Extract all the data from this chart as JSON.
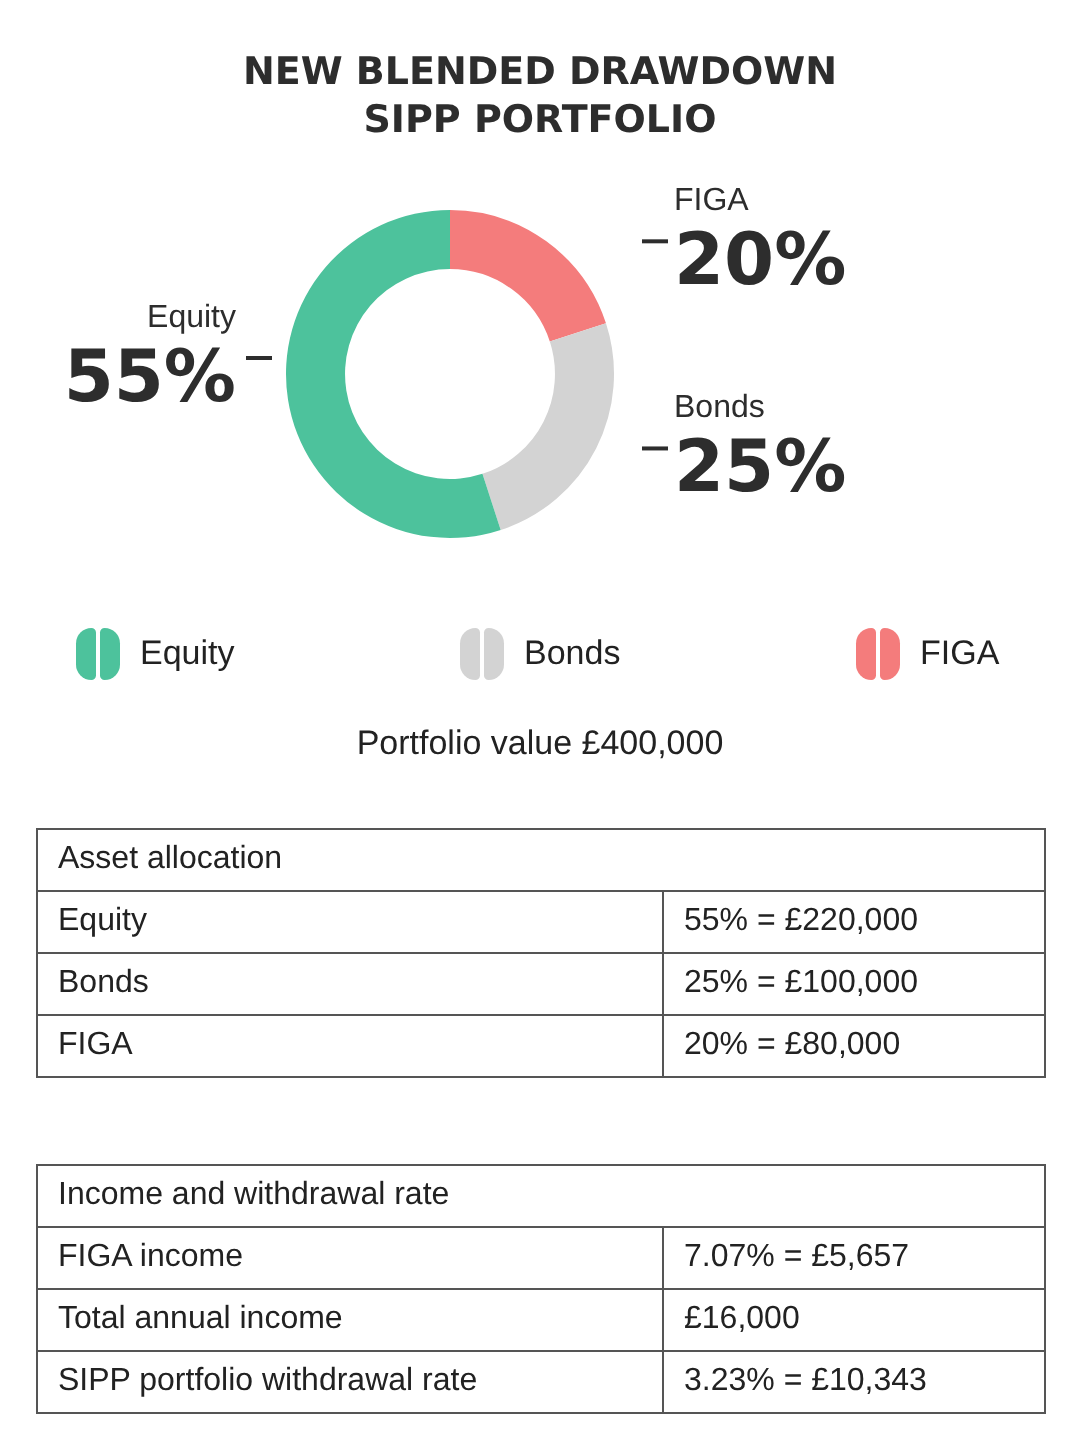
{
  "chart_data": {
    "type": "donut",
    "title": "NEW BLENDED DRAWDOWN\nSIPP PORTFOLIO",
    "categories": [
      "FIGA",
      "Bonds",
      "Equity"
    ],
    "values": [
      20,
      25,
      55
    ],
    "colors": [
      "#f47c7c",
      "#d3d3d3",
      "#4dc29c"
    ],
    "value_labels": [
      "20%",
      "25%",
      "55%"
    ],
    "legend": "bottom",
    "annotations": [
      "Portfolio value £400,000",
      "Asset allocation",
      "Equity",
      "55% = £220,000",
      "Bonds",
      "25% = £100,000",
      "FIGA",
      "20% = £80,000",
      "Income and withdrawal rate",
      "FIGA income",
      "7.07% = £5,657",
      "Total annual income",
      "£16,000",
      "SIPP portfolio withdrawal rate",
      "3.23% = £10,343"
    ]
  }
}
